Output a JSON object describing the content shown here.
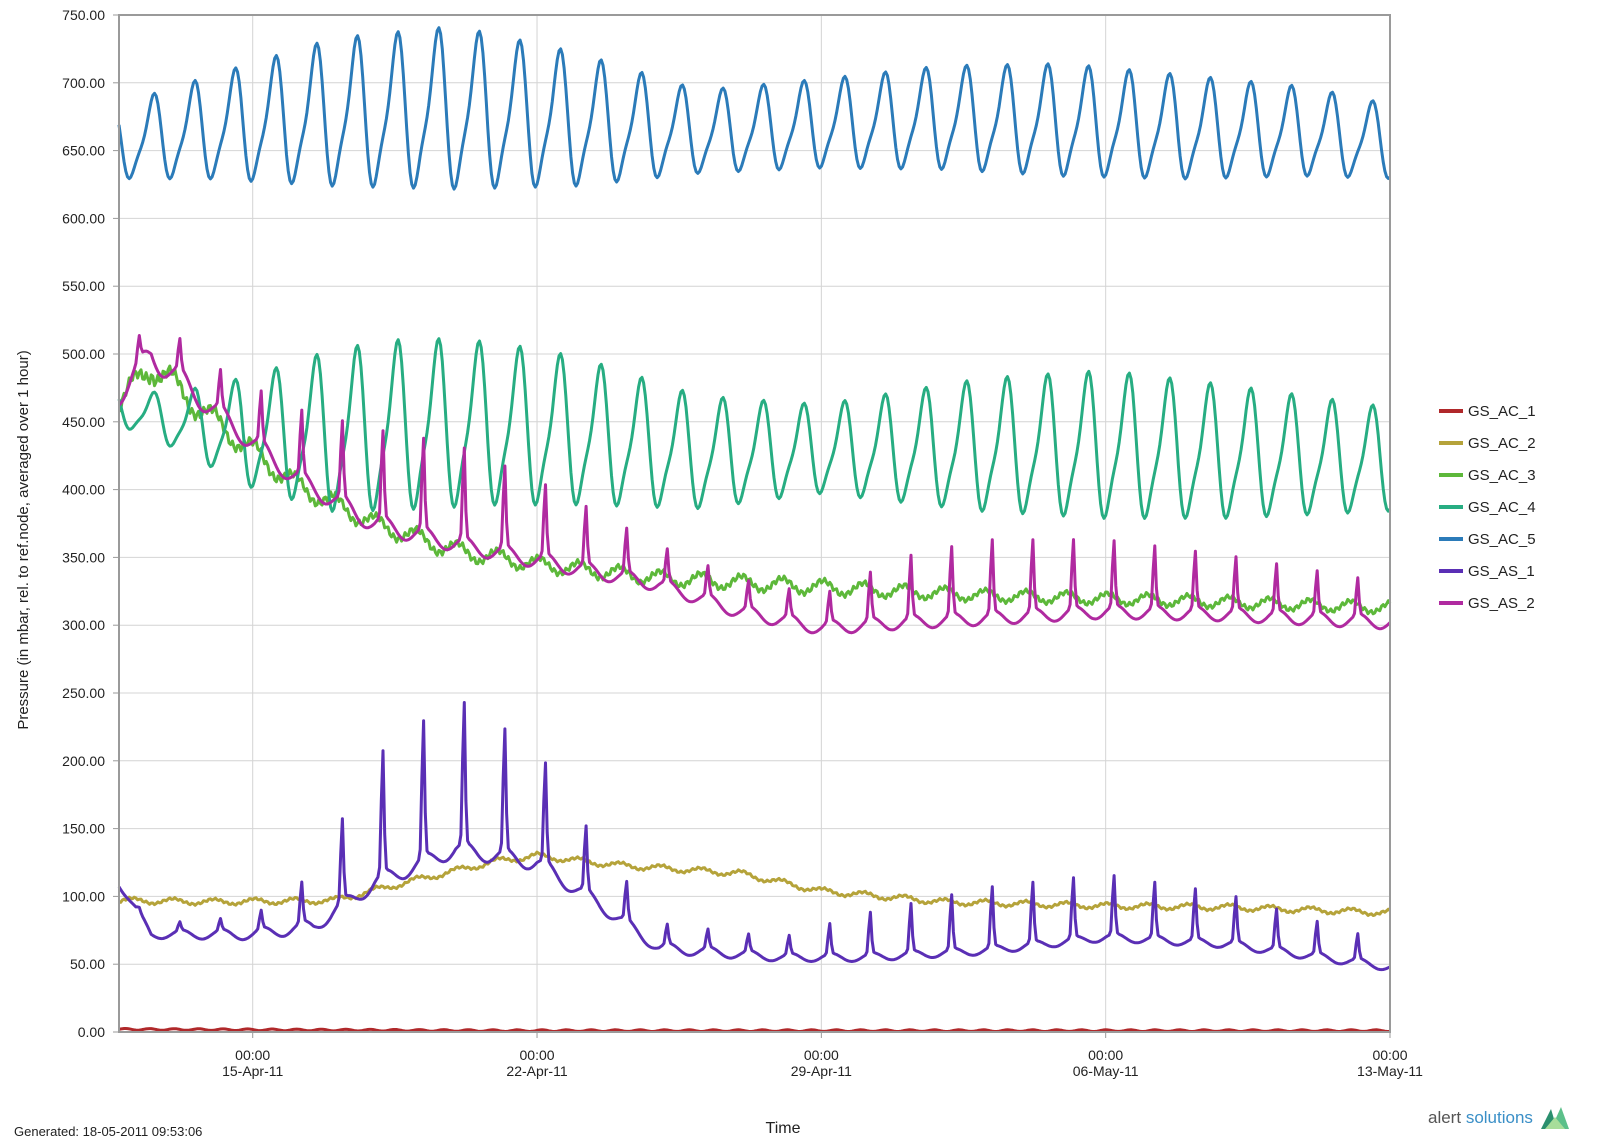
{
  "chart_data": {
    "type": "line",
    "title": "",
    "xlabel": "Time",
    "ylabel": "Pressure (in mbar, rel. to ref.node, averaged over 1 hour)",
    "ylim": [
      0,
      750
    ],
    "y_ticks": [
      "0.00",
      "50.00",
      "100.00",
      "150.00",
      "200.00",
      "250.00",
      "300.00",
      "350.00",
      "400.00",
      "450.00",
      "500.00",
      "550.00",
      "600.00",
      "650.00",
      "700.00",
      "750.00"
    ],
    "x_range": [
      "2011-04-11T17:00",
      "2011-05-13T00:00"
    ],
    "x_ticks": [
      {
        "time": "00:00",
        "date": "15-Apr-11"
      },
      {
        "time": "00:00",
        "date": "22-Apr-11"
      },
      {
        "time": "00:00",
        "date": "29-Apr-11"
      },
      {
        "time": "00:00",
        "date": "06-May-11"
      },
      {
        "time": "00:00",
        "date": "13-May-11"
      }
    ],
    "x_tick_values": [
      "2011-04-15T00:00",
      "2011-04-22T00:00",
      "2011-04-29T00:00",
      "2011-05-06T00:00",
      "2011-05-13T00:00"
    ],
    "grid": true,
    "legend_position": "right",
    "series": [
      {
        "name": "GS_AC_1",
        "color": "#b0282a",
        "profile": "flat",
        "x": [
          "2011-04-11T17:00",
          "2011-04-21T00:00",
          "2011-05-01T00:00",
          "2011-05-13T00:00"
        ],
        "level": [
          2,
          1,
          1,
          1
        ],
        "amplitude": [
          0,
          0,
          0,
          0
        ],
        "spike": [
          0,
          0,
          0,
          0
        ]
      },
      {
        "name": "GS_AC_2",
        "color": "#b5a33a",
        "profile": "smooth",
        "x": [
          "2011-04-11T17:00",
          "2011-04-14T00:00",
          "2011-04-17T00:00",
          "2011-04-19T00:00",
          "2011-04-21T00:00",
          "2011-04-22T00:00",
          "2011-04-24T00:00",
          "2011-04-27T00:00",
          "2011-04-29T00:00",
          "2011-05-02T00:00",
          "2011-05-06T00:00",
          "2011-05-09T00:00",
          "2011-05-13T00:00"
        ],
        "level": [
          97,
          96,
          97,
          112,
          126,
          130,
          123,
          117,
          104,
          96,
          93,
          92,
          88
        ],
        "amplitude": [
          2,
          2,
          2,
          2,
          2,
          2,
          2,
          2,
          2,
          2,
          2,
          2,
          2
        ],
        "spike": [
          0,
          0,
          0,
          0,
          0,
          0,
          0,
          0,
          0,
          0,
          0,
          0,
          0
        ]
      },
      {
        "name": "GS_AC_3",
        "color": "#5db83a",
        "profile": "smooth",
        "x": [
          "2011-04-11T17:00",
          "2011-04-12T12:00",
          "2011-04-14T00:00",
          "2011-04-16T00:00",
          "2011-04-18T00:00",
          "2011-04-20T00:00",
          "2011-04-22T00:00",
          "2011-04-25T00:00",
          "2011-04-29T00:00",
          "2011-05-03T00:00",
          "2011-05-08T00:00",
          "2011-05-13T00:00"
        ],
        "level": [
          462,
          492,
          452,
          405,
          375,
          355,
          345,
          335,
          328,
          322,
          318,
          313
        ],
        "amplitude": [
          8,
          10,
          8,
          7,
          6,
          6,
          5,
          5,
          5,
          4,
          4,
          4
        ],
        "spike": [
          0,
          0,
          0,
          0,
          0,
          0,
          0,
          0,
          0,
          0,
          0,
          0
        ]
      },
      {
        "name": "GS_AC_4",
        "color": "#27ad82",
        "profile": "sine",
        "x": [
          "2011-04-11T17:00",
          "2011-04-13T00:00",
          "2011-04-15T00:00",
          "2011-04-17T00:00",
          "2011-04-19T00:00",
          "2011-04-21T00:00",
          "2011-04-23T00:00",
          "2011-04-26T00:00",
          "2011-04-29T00:00",
          "2011-05-03T00:00",
          "2011-05-06T00:00",
          "2011-05-09T00:00",
          "2011-05-13T00:00"
        ],
        "level": [
          460,
          450,
          440,
          440,
          445,
          445,
          440,
          425,
          428,
          430,
          430,
          425,
          420
        ],
        "amplitude": [
          12,
          18,
          38,
          55,
          58,
          55,
          50,
          38,
          30,
          45,
          50,
          45,
          35
        ],
        "spike": [
          0,
          0,
          0,
          0,
          0,
          0,
          0,
          0,
          0,
          0,
          0,
          0,
          0
        ]
      },
      {
        "name": "GS_AC_5",
        "color": "#2b7bb9",
        "profile": "sine",
        "x": [
          "2011-04-11T17:00",
          "2011-04-14T00:00",
          "2011-04-17T00:00",
          "2011-04-20T00:00",
          "2011-04-23T00:00",
          "2011-04-26T00:00",
          "2011-04-29T00:00",
          "2011-05-02T00:00",
          "2011-05-05T00:00",
          "2011-05-08T00:00",
          "2011-05-11T00:00",
          "2011-05-13T00:00"
        ],
        "level": [
          655,
          665,
          675,
          678,
          670,
          662,
          668,
          672,
          670,
          665,
          662,
          655
        ],
        "amplitude": [
          25,
          35,
          50,
          55,
          45,
          28,
          30,
          35,
          38,
          35,
          30,
          25
        ],
        "spike": [
          0,
          0,
          0,
          0,
          0,
          0,
          0,
          0,
          0,
          0,
          0,
          0
        ]
      },
      {
        "name": "GS_AS_1",
        "color": "#5a2fb5",
        "profile": "spiky",
        "x": [
          "2011-04-11T17:00",
          "2011-04-12T12:00",
          "2011-04-15T00:00",
          "2011-04-16T12:00",
          "2011-04-18T00:00",
          "2011-04-20T00:00",
          "2011-04-22T00:00",
          "2011-04-23T12:00",
          "2011-04-25T00:00",
          "2011-04-28T00:00",
          "2011-04-30T00:00",
          "2011-05-03T00:00",
          "2011-05-06T00:00",
          "2011-05-09T00:00",
          "2011-05-13T00:00"
        ],
        "level": [
          110,
          72,
          72,
          78,
          110,
          135,
          125,
          95,
          62,
          55,
          55,
          60,
          70,
          65,
          48
        ],
        "amplitude": [
          3,
          3,
          4,
          5,
          6,
          6,
          6,
          5,
          4,
          3,
          3,
          3,
          3,
          3,
          3
        ],
        "spike": [
          0,
          5,
          10,
          35,
          90,
          110,
          80,
          40,
          15,
          12,
          30,
          45,
          45,
          35,
          15
        ]
      },
      {
        "name": "GS_AS_2",
        "color": "#b02aa0",
        "profile": "spiky",
        "x": [
          "2011-04-11T17:00",
          "2011-04-12T12:00",
          "2011-04-14T00:00",
          "2011-04-16T00:00",
          "2011-04-18T00:00",
          "2011-04-20T00:00",
          "2011-04-22T00:00",
          "2011-04-25T00:00",
          "2011-04-27T00:00",
          "2011-04-29T00:00",
          "2011-05-01T00:00",
          "2011-05-03T00:00",
          "2011-05-06T00:00",
          "2011-05-09T00:00",
          "2011-05-13T00:00"
        ],
        "level": [
          470,
          500,
          460,
          410,
          375,
          360,
          348,
          330,
          310,
          298,
          302,
          305,
          310,
          308,
          302
        ],
        "amplitude": [
          8,
          10,
          8,
          7,
          7,
          6,
          6,
          5,
          5,
          5,
          5,
          5,
          5,
          5,
          5
        ],
        "spike": [
          10,
          20,
          25,
          45,
          65,
          70,
          55,
          25,
          20,
          20,
          45,
          55,
          50,
          40,
          25
        ]
      }
    ]
  },
  "footer": {
    "generated": "Generated: 18-05-2011 09:53:06",
    "logo_word1": "alert",
    "logo_word2": "solutions"
  }
}
